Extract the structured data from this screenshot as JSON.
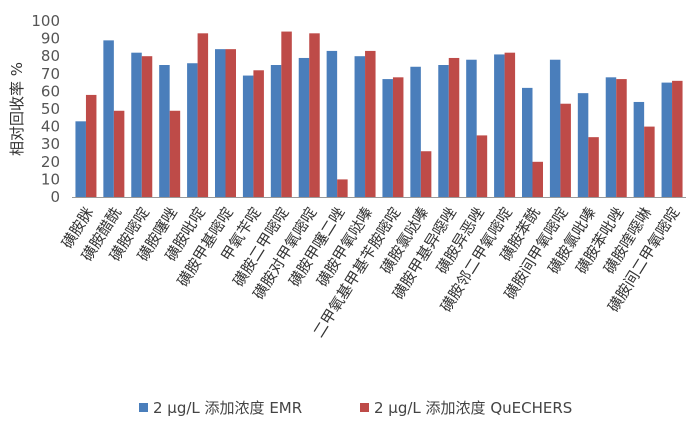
{
  "chart_data": {
    "type": "bar",
    "ylabel": "相对回收率 %",
    "ylim": [
      0,
      100
    ],
    "yticks": [
      0,
      10,
      20,
      30,
      40,
      50,
      60,
      70,
      80,
      90,
      100
    ],
    "grid": false,
    "legend_position": "bottom",
    "categories": [
      "磺胺脒",
      "磺胺醋酰",
      "磺胺嘧啶",
      "磺胺噻唑",
      "磺胺吡啶",
      "磺胺甲基嘧啶",
      "甲氧苄啶",
      "磺胺二甲嘧啶",
      "磺胺对甲氧嘧啶",
      "磺胺甲噻二唑",
      "磺胺甲氧哒嗪",
      "二甲氧基甲基苄胺嘧啶",
      "磺胺氯哒嗪",
      "磺胺甲基异噁唑",
      "磺胺异恶唑",
      "磺胺邻二甲氧嘧啶",
      "磺胺苯酰",
      "磺胺间甲氧嘧啶",
      "磺胺氯吡嗪",
      "磺胺苯吡唑",
      "磺胺喹噁啉",
      "磺胺间二甲氧嘧啶"
    ],
    "series": [
      {
        "name": "2 μg/L 添加浓度 EMR",
        "color": "#4a7ebb",
        "values": [
          43,
          89,
          82,
          75,
          76,
          84,
          69,
          75,
          79,
          83,
          80,
          67,
          74,
          75,
          78,
          81,
          62,
          78,
          59,
          68,
          54,
          65
        ]
      },
      {
        "name": "2 μg/L 添加浓度 QuECHERS",
        "color": "#be4b48",
        "values": [
          58,
          49,
          80,
          49,
          93,
          84,
          72,
          94,
          93,
          10,
          83,
          68,
          26,
          79,
          35,
          82,
          20,
          53,
          34,
          67,
          40,
          66
        ]
      }
    ]
  }
}
